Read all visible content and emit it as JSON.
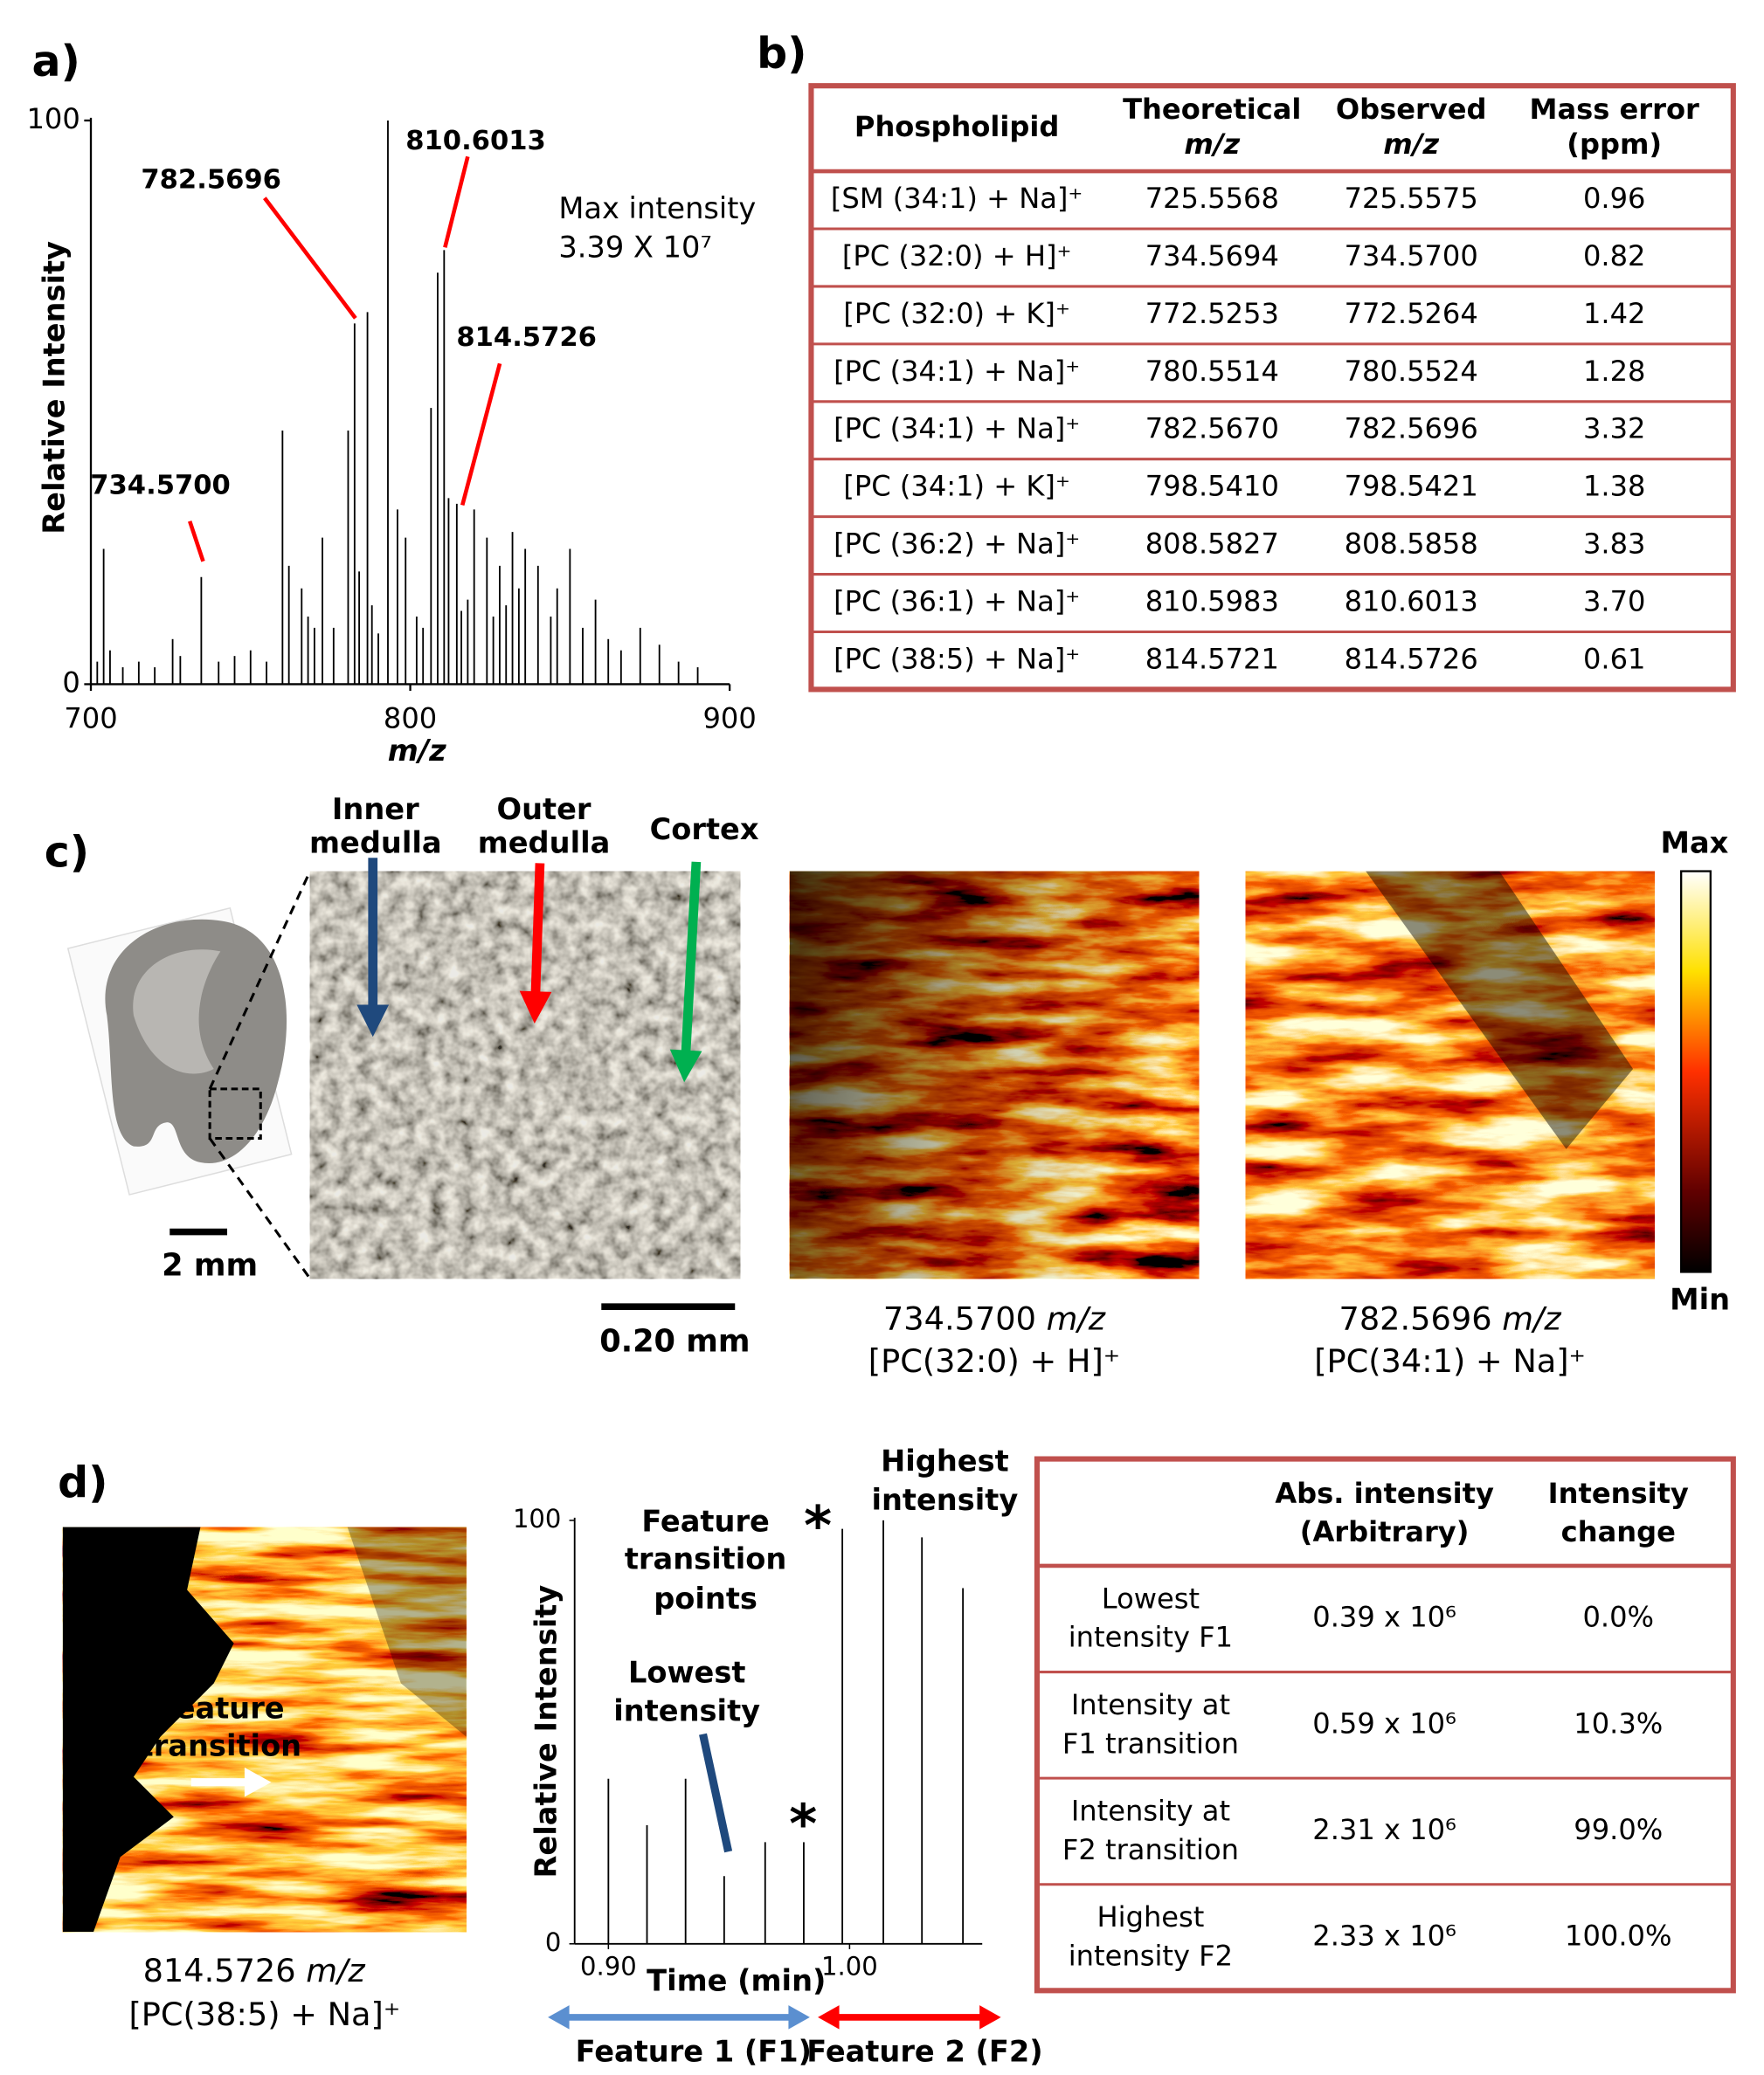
{
  "panel_labels": [
    "a)",
    "b)",
    "c)",
    "d)"
  ],
  "chart_data": [
    {
      "type": "spectrum",
      "x_label": "m/z",
      "y_label": "Relative Intensity",
      "xlim": [
        700,
        900
      ],
      "ylim": [
        0,
        100
      ],
      "xticks": [
        700,
        800,
        900
      ],
      "yticks": [
        0,
        100
      ],
      "color": "#000000",
      "x": [
        702,
        704,
        706,
        710,
        715,
        720,
        725.6,
        728,
        734.57,
        740,
        745,
        750,
        755,
        760,
        762,
        766,
        768,
        770,
        772.5,
        776,
        780.55,
        782.57,
        784,
        786.6,
        788,
        790,
        793,
        796,
        798.54,
        802,
        804,
        806.5,
        808.58,
        810.6,
        812,
        814.57,
        816,
        818,
        820,
        824,
        826,
        828,
        830,
        832,
        834,
        836,
        840,
        844,
        846,
        850,
        854,
        858,
        862,
        866,
        872,
        878,
        884,
        890
      ],
      "values": [
        4,
        24,
        6,
        3,
        4,
        3,
        8,
        5,
        19,
        4,
        5,
        6,
        4,
        45,
        21,
        17,
        12,
        10,
        26,
        10,
        45,
        64,
        20,
        66,
        14,
        9,
        100,
        31,
        26,
        12,
        10,
        49,
        73,
        77,
        33,
        32,
        13,
        15,
        31,
        26,
        12,
        21,
        14,
        27,
        17,
        24,
        21,
        12,
        17,
        24,
        10,
        15,
        8,
        6,
        10,
        7,
        4,
        3
      ],
      "annotations": [
        "782.5696",
        "810.6013",
        "814.5726",
        "734.5700"
      ],
      "annotation_color": "#ff0000",
      "max_intensity": [
        "Max intensity",
        "3.39 X 10⁷"
      ]
    },
    {
      "type": "chromatogram",
      "x_label": "Time (min)",
      "y_label": "Relative Intensity",
      "xlim": [
        0.886,
        1.055
      ],
      "ylim": [
        0,
        100
      ],
      "xticks": [
        {
          "value": 0.9,
          "label": "0.90"
        },
        {
          "value": 1.0,
          "label": "1.00"
        }
      ],
      "yticks": [
        0,
        100
      ],
      "color": "#000000",
      "x": [
        0.9,
        0.916,
        0.932,
        0.948,
        0.965,
        0.981,
        0.997,
        1.014,
        1.03,
        1.047
      ],
      "values": [
        39,
        28,
        39,
        16,
        24,
        24,
        98,
        100,
        96,
        84
      ],
      "annotations": {
        "transition": [
          "Feature",
          "transition",
          "points"
        ],
        "highest": [
          "Highest",
          "intensity"
        ],
        "lowest": [
          "Lowest",
          "intensity"
        ],
        "star": "*",
        "features": [
          "Feature 1 (F1)",
          "Feature 2 (F2)"
        ]
      }
    }
  ],
  "table_b": {
    "header": [
      [
        "Phospholipid"
      ],
      [
        "Theoretical",
        "m/z"
      ],
      [
        "Observed",
        "m/z"
      ],
      [
        "Mass error",
        "(ppm)"
      ]
    ],
    "rows": [
      [
        "[SM (34:1) + Na]⁺",
        "725.5568",
        "725.5575",
        "0.96"
      ],
      [
        "[PC (32:0) + H]⁺",
        "734.5694",
        "734.5700",
        "0.82"
      ],
      [
        "[PC (32:0) + K]⁺",
        "772.5253",
        "772.5264",
        "1.42"
      ],
      [
        "[PC (34:1) + Na]⁺",
        "780.5514",
        "780.5524",
        "1.28"
      ],
      [
        "[PC (34:1) + Na]⁺",
        "782.5670",
        "782.5696",
        "3.32"
      ],
      [
        "[PC (34:1) + K]⁺",
        "798.5410",
        "798.5421",
        "1.38"
      ],
      [
        "[PC (36:2) + Na]⁺",
        "808.5827",
        "808.5858",
        "3.83"
      ],
      [
        "[PC (36:1) + Na]⁺",
        "810.5983",
        "810.6013",
        "3.70"
      ],
      [
        "[PC (38:5) + Na]⁺",
        "814.5721",
        "814.5726",
        "0.61"
      ]
    ]
  },
  "panel_c": {
    "regions": [
      [
        "Inner",
        "medulla"
      ],
      [
        "Outer",
        "medulla"
      ],
      [
        "Cortex"
      ]
    ],
    "scale_bars": [
      "2 mm",
      "0.20 mm"
    ],
    "colorbar": [
      "Max",
      "Min"
    ],
    "images": [
      {
        "mz": "734.5700",
        "unit": "m/z",
        "ion": "[PC(32:0) + H]⁺"
      },
      {
        "mz": "782.5696",
        "unit": "m/z",
        "ion": "[PC(34:1) + Na]⁺"
      }
    ]
  },
  "panel_d": {
    "image": {
      "mz": "814.5726",
      "unit": "m/z",
      "ion": "[PC(38:5) + Na]⁺"
    },
    "arrow_label": [
      "Feature",
      "transition"
    ]
  },
  "table_d": {
    "header": [
      [
        "Abs. intensity",
        "(Arbitrary)"
      ],
      [
        "Intensity",
        "change"
      ]
    ],
    "rows": [
      {
        "label": [
          "Lowest",
          "intensity F1"
        ],
        "abs": "0.39 x 10⁶",
        "change": "0.0%"
      },
      {
        "label": [
          "Intensity at",
          "F1 transition"
        ],
        "abs": "0.59 x 10⁶",
        "change": "10.3%"
      },
      {
        "label": [
          "Intensity at",
          "F2 transition"
        ],
        "abs": "2.31 x 10⁶",
        "change": "99.0%"
      },
      {
        "label": [
          "Highest",
          "intensity F2"
        ],
        "abs": "2.33 x 10⁶",
        "change": "100.0%"
      }
    ]
  }
}
